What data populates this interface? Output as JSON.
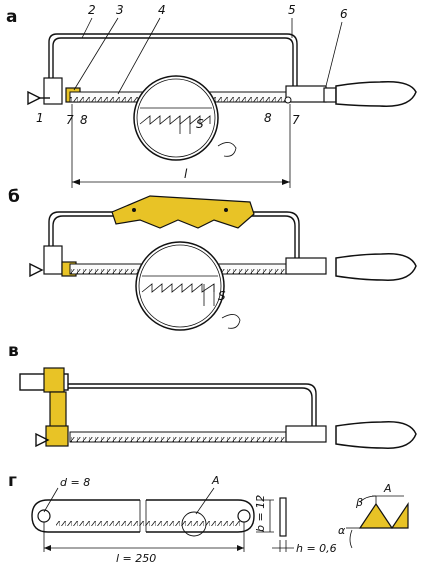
{
  "sections": [
    {
      "id": "a",
      "label": "а"
    },
    {
      "id": "b",
      "label": "б"
    },
    {
      "id": "v",
      "label": "в"
    },
    {
      "id": "g",
      "label": "г"
    }
  ],
  "part_numbers": {
    "p1": "1",
    "p2": "2",
    "p3": "3",
    "p4": "4",
    "p5": "5",
    "p6": "6",
    "p7_left": "7",
    "p8_left": "8",
    "p8_right": "8",
    "p7_right": "7"
  },
  "dimensions": {
    "tooth_pitch_a": "S",
    "tooth_pitch_b": "S",
    "frame_length": "l",
    "hole_diameter": "d = 8",
    "blade_length": "l = 250",
    "blade_width": "b = 12",
    "blade_thickness": "h = 0,6",
    "detail_marker": "A",
    "detail_title": "A",
    "angle_beta": "β",
    "angle_alpha": "α"
  }
}
